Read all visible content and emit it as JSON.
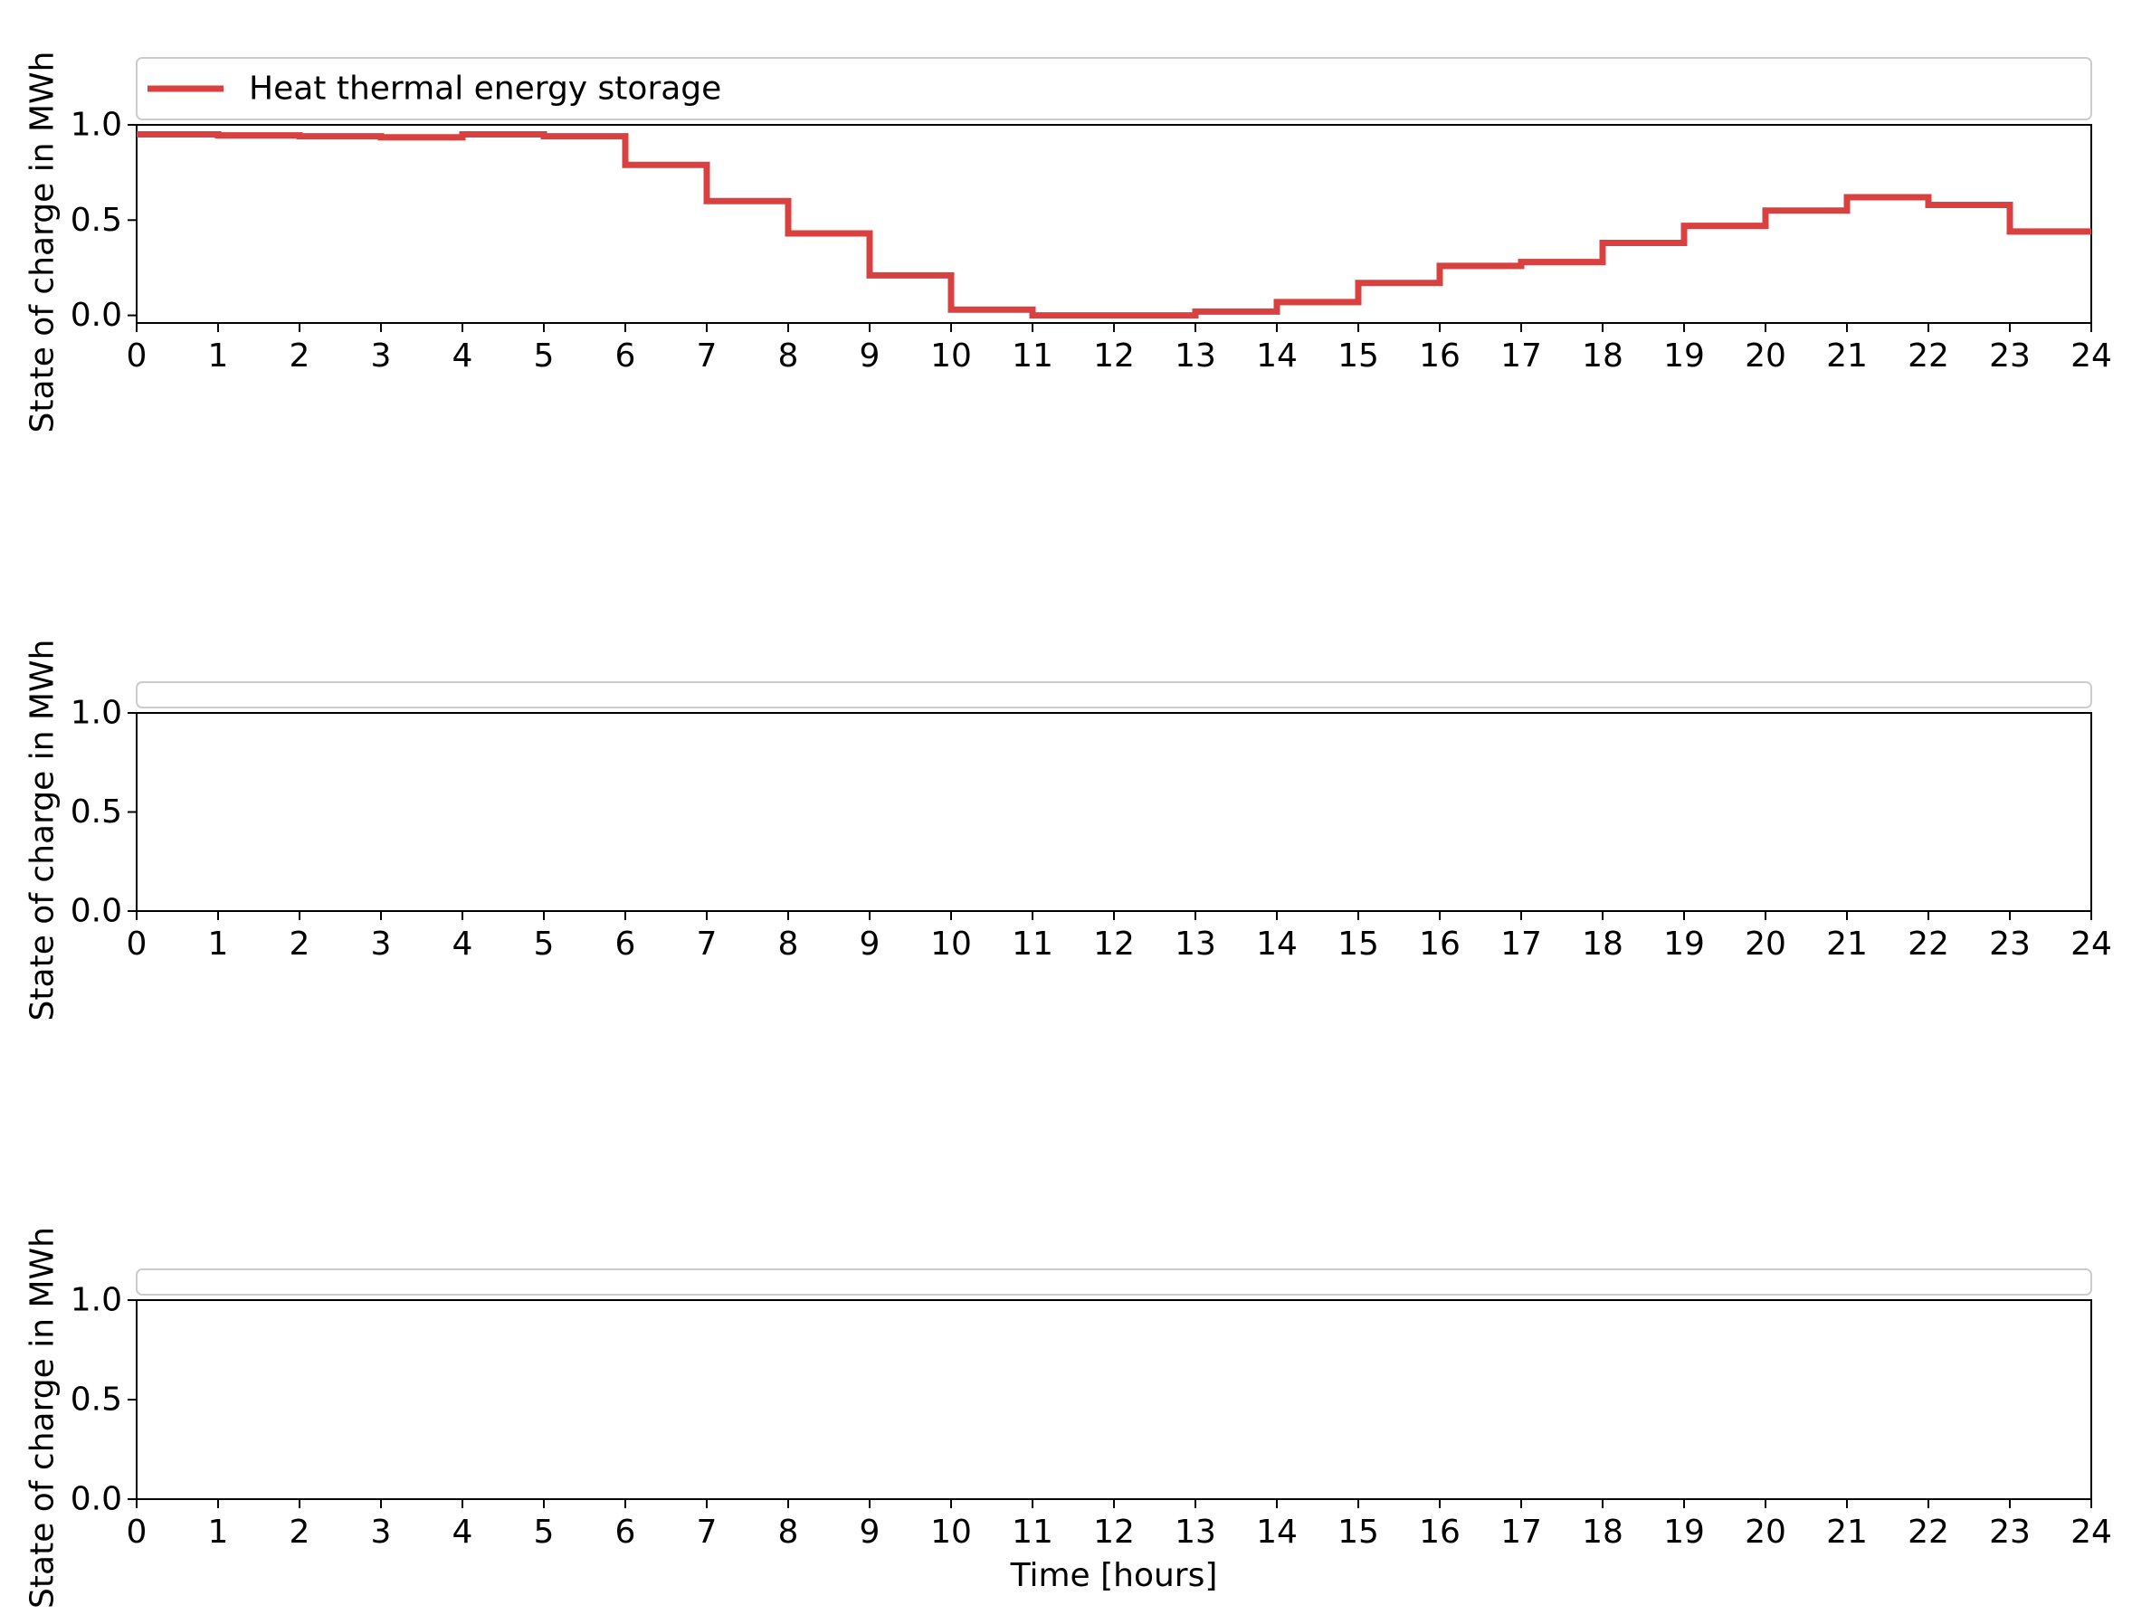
{
  "chart_data": [
    {
      "type": "line",
      "step": "post",
      "x": [
        0,
        1,
        2,
        3,
        4,
        5,
        6,
        7,
        8,
        9,
        10,
        11,
        12,
        13,
        14,
        15,
        16,
        17,
        18,
        19,
        20,
        21,
        22,
        23,
        24
      ],
      "series": [
        {
          "name": "Heat thermal energy storage",
          "color": "#d94040",
          "values": [
            0.95,
            0.945,
            0.94,
            0.935,
            0.95,
            0.94,
            0.79,
            0.6,
            0.43,
            0.21,
            0.03,
            0.0,
            0.0,
            0.02,
            0.07,
            0.17,
            0.26,
            0.28,
            0.38,
            0.47,
            0.55,
            0.62,
            0.58,
            0.44,
            0.44
          ]
        }
      ],
      "xlabel": "",
      "ylabel": "State of charge in MWh",
      "xlim": [
        0,
        24
      ],
      "ylim": [
        -0.04,
        1.0
      ],
      "xticks": [
        "0",
        "1",
        "2",
        "3",
        "4",
        "5",
        "6",
        "7",
        "8",
        "9",
        "10",
        "11",
        "12",
        "13",
        "14",
        "15",
        "16",
        "17",
        "18",
        "19",
        "20",
        "21",
        "22",
        "23",
        "24"
      ],
      "yticks": [
        "0.0",
        "0.5",
        "1.0"
      ],
      "grid": false,
      "legend": "top, above plot"
    },
    {
      "type": "line",
      "step": "post",
      "x": [],
      "series": [],
      "xlabel": "",
      "ylabel": "State of charge in MWh",
      "xlim": [
        0,
        24
      ],
      "ylim": [
        0.0,
        1.0
      ],
      "xticks": [
        "0",
        "1",
        "2",
        "3",
        "4",
        "5",
        "6",
        "7",
        "8",
        "9",
        "10",
        "11",
        "12",
        "13",
        "14",
        "15",
        "16",
        "17",
        "18",
        "19",
        "20",
        "21",
        "22",
        "23",
        "24"
      ],
      "yticks": [
        "0.0",
        "0.5",
        "1.0"
      ],
      "grid": false,
      "legend": "top, above plot"
    },
    {
      "type": "line",
      "step": "post",
      "x": [],
      "series": [],
      "xlabel": "Time [hours]",
      "ylabel": "State of charge in MWh",
      "xlim": [
        0,
        24
      ],
      "ylim": [
        0.0,
        1.0
      ],
      "xticks": [
        "0",
        "1",
        "2",
        "3",
        "4",
        "5",
        "6",
        "7",
        "8",
        "9",
        "10",
        "11",
        "12",
        "13",
        "14",
        "15",
        "16",
        "17",
        "18",
        "19",
        "20",
        "21",
        "22",
        "23",
        "24"
      ],
      "yticks": [
        "0.0",
        "0.5",
        "1.0"
      ],
      "grid": false,
      "legend": "top, above plot"
    }
  ]
}
